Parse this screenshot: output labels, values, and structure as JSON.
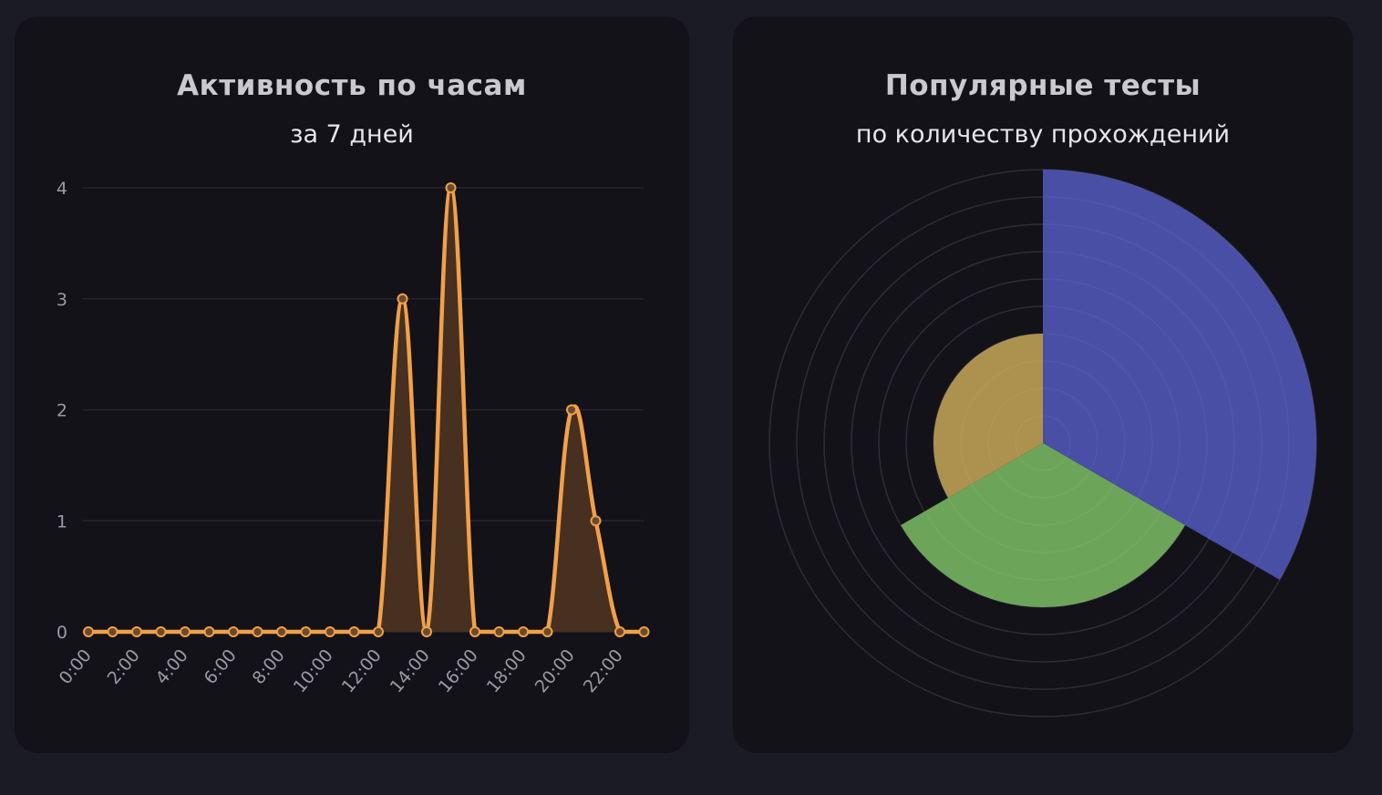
{
  "chart_data": [
    {
      "type": "line",
      "title": "Активность по часам",
      "subtitle": "за 7 дней",
      "x": [
        "0:00",
        "1:00",
        "2:00",
        "3:00",
        "4:00",
        "5:00",
        "6:00",
        "7:00",
        "8:00",
        "9:00",
        "10:00",
        "11:00",
        "12:00",
        "13:00",
        "14:00",
        "15:00",
        "16:00",
        "17:00",
        "18:00",
        "19:00",
        "20:00",
        "21:00",
        "22:00",
        "23:00"
      ],
      "xtick_labels": [
        "0:00",
        "2:00",
        "4:00",
        "6:00",
        "8:00",
        "10:00",
        "12:00",
        "14:00",
        "16:00",
        "18:00",
        "20:00",
        "22:00"
      ],
      "values": [
        0,
        0,
        0,
        0,
        0,
        0,
        0,
        0,
        0,
        0,
        0,
        0,
        0,
        3,
        0,
        4,
        0,
        0,
        0,
        0,
        2,
        1,
        0,
        0
      ],
      "yticks": [
        "0",
        "1",
        "2",
        "3",
        "4"
      ],
      "ylim": [
        0,
        4
      ],
      "grid": true,
      "color": "#f0a04b",
      "fill": "#47301f"
    },
    {
      "type": "polarArea",
      "title": "Популярные тесты",
      "subtitle": "по количеству прохождений",
      "values": [
        5,
        3,
        2
      ],
      "colors": [
        "#4a52aa",
        "#6faa5c",
        "#b39651"
      ],
      "rlim": [
        0,
        5
      ],
      "rstep": 0.5
    }
  ]
}
